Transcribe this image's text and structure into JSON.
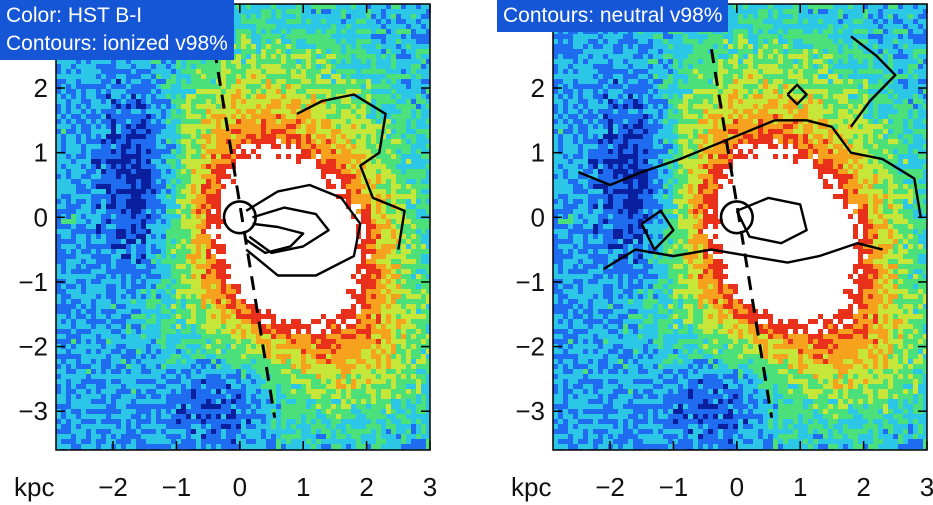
{
  "figure": {
    "units_label": "kpc",
    "panels": [
      {
        "id": "left",
        "labels": [
          "Color: HST B-I",
          "Contours: ionized v98%"
        ]
      },
      {
        "id": "right",
        "labels": [
          "Contours: neutral v98%"
        ]
      }
    ]
  },
  "chart_data": [
    {
      "type": "heatmap",
      "title": "",
      "xlabel": "kpc",
      "ylabel": "",
      "xlim": [
        -2.9,
        3.0
      ],
      "ylim": [
        -3.6,
        3.3
      ],
      "xticks": [
        -2,
        -1,
        0,
        1,
        2,
        3
      ],
      "yticks": [
        2,
        1,
        0,
        -1,
        -2,
        -3
      ],
      "xtick_labels": [
        "−2",
        "−1",
        "0",
        "1",
        "2",
        "3"
      ],
      "ytick_labels": [
        "2",
        "1",
        "0",
        "−1",
        "−2",
        "−3"
      ],
      "color_quantity": "HST B-I",
      "contour_quantity": "ionized v98%",
      "colormap": [
        "#0a1f9e",
        "#1f6cf0",
        "#2cc7e6",
        "#4be07a",
        "#c6e63a",
        "#f6a21e",
        "#e8301a",
        "#ffffff"
      ],
      "features": {
        "nucleus_circle": {
          "x": 0.0,
          "y": 0.0,
          "r": 0.25
        },
        "dashed_line": [
          [
            -0.4,
            2.6
          ],
          [
            0.55,
            -3.1
          ]
        ]
      },
      "contours": [
        [
          [
            0.9,
            1.6
          ],
          [
            1.3,
            1.8
          ],
          [
            1.8,
            1.9
          ],
          [
            2.3,
            1.6
          ],
          [
            2.2,
            1.0
          ],
          [
            1.9,
            0.8
          ],
          [
            2.1,
            0.3
          ],
          [
            2.6,
            0.1
          ],
          [
            2.5,
            -0.5
          ]
        ],
        [
          [
            0.1,
            0.1
          ],
          [
            0.6,
            0.4
          ],
          [
            1.1,
            0.5
          ],
          [
            1.6,
            0.3
          ],
          [
            1.9,
            -0.1
          ],
          [
            1.8,
            -0.6
          ],
          [
            1.2,
            -0.9
          ],
          [
            0.6,
            -0.9
          ],
          [
            0.1,
            -0.5
          ]
        ],
        [
          [
            0.2,
            0.0
          ],
          [
            0.7,
            0.15
          ],
          [
            1.2,
            0.05
          ],
          [
            1.4,
            -0.2
          ],
          [
            1.0,
            -0.45
          ],
          [
            0.5,
            -0.55
          ],
          [
            0.15,
            -0.3
          ]
        ],
        [
          [
            0.2,
            -0.1
          ],
          [
            0.6,
            -0.15
          ],
          [
            1.0,
            -0.25
          ],
          [
            0.8,
            -0.45
          ],
          [
            0.4,
            -0.55
          ],
          [
            0.1,
            -0.35
          ]
        ]
      ]
    },
    {
      "type": "heatmap",
      "title": "",
      "xlabel": "kpc",
      "ylabel": "",
      "xlim": [
        -2.9,
        3.0
      ],
      "ylim": [
        -3.6,
        3.3
      ],
      "xticks": [
        -2,
        -1,
        0,
        1,
        2,
        3
      ],
      "yticks": [
        2,
        1,
        0,
        -1,
        -2,
        -3
      ],
      "xtick_labels": [
        "−2",
        "−1",
        "0",
        "1",
        "2",
        "3"
      ],
      "ytick_labels": [
        "2",
        "1",
        "0",
        "−1",
        "−2",
        "−3"
      ],
      "color_quantity": "HST B-I",
      "contour_quantity": "neutral v98%",
      "colormap": [
        "#0a1f9e",
        "#1f6cf0",
        "#2cc7e6",
        "#4be07a",
        "#c6e63a",
        "#f6a21e",
        "#e8301a",
        "#ffffff"
      ],
      "features": {
        "nucleus_circle": {
          "x": 0.0,
          "y": 0.0,
          "r": 0.25
        },
        "dashed_line": [
          [
            -0.4,
            2.6
          ],
          [
            0.55,
            -3.1
          ]
        ]
      },
      "contours": [
        [
          [
            -2.5,
            0.7
          ],
          [
            -2.0,
            0.5
          ],
          [
            -1.5,
            0.7
          ],
          [
            -0.9,
            0.9
          ],
          [
            -0.4,
            1.1
          ],
          [
            0.1,
            1.3
          ],
          [
            0.6,
            1.5
          ],
          [
            1.1,
            1.5
          ],
          [
            1.5,
            1.4
          ],
          [
            1.8,
            1.0
          ],
          [
            2.3,
            0.9
          ],
          [
            2.8,
            0.6
          ],
          [
            2.9,
            0.0
          ]
        ],
        [
          [
            -2.1,
            -0.8
          ],
          [
            -1.6,
            -0.5
          ],
          [
            -1.0,
            -0.6
          ],
          [
            -0.4,
            -0.5
          ],
          [
            0.2,
            -0.6
          ],
          [
            0.8,
            -0.7
          ],
          [
            1.3,
            -0.6
          ],
          [
            1.9,
            -0.4
          ],
          [
            2.3,
            -0.5
          ]
        ],
        [
          [
            -1.5,
            -0.1
          ],
          [
            -1.2,
            0.1
          ],
          [
            -1.0,
            -0.2
          ],
          [
            -1.3,
            -0.5
          ],
          [
            -1.5,
            -0.1
          ]
        ],
        [
          [
            0.0,
            0.1
          ],
          [
            0.5,
            0.3
          ],
          [
            1.0,
            0.2
          ],
          [
            1.1,
            -0.2
          ],
          [
            0.7,
            -0.4
          ],
          [
            0.2,
            -0.3
          ],
          [
            0.0,
            0.1
          ]
        ],
        [
          [
            1.8,
            2.8
          ],
          [
            2.2,
            2.5
          ],
          [
            2.5,
            2.2
          ],
          [
            2.1,
            1.8
          ],
          [
            1.8,
            1.4
          ]
        ],
        [
          [
            0.8,
            1.9
          ],
          [
            0.95,
            2.05
          ],
          [
            1.1,
            1.9
          ],
          [
            0.95,
            1.75
          ],
          [
            0.8,
            1.9
          ]
        ]
      ]
    }
  ]
}
